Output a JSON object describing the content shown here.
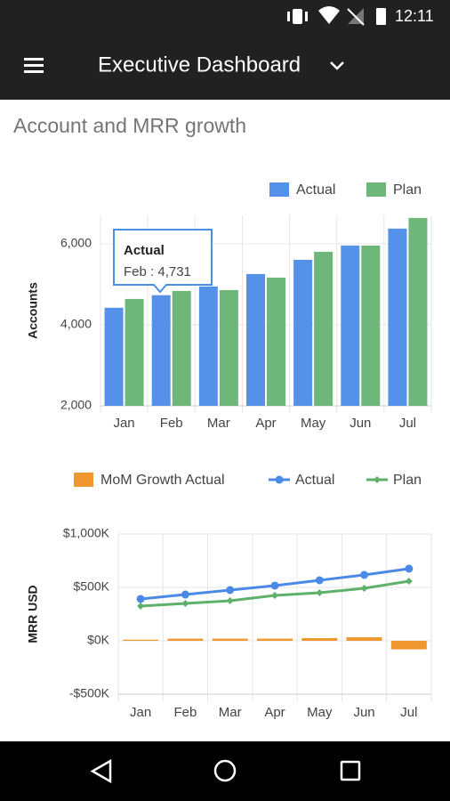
{
  "status_bar": {
    "time": "12:11"
  },
  "app_bar": {
    "title": "Executive Dashboard"
  },
  "section_title": "Account and MRR growth",
  "chart_data": [
    {
      "type": "bar",
      "y_label": "Accounts",
      "categories": [
        "Jan",
        "Feb",
        "Mar",
        "Apr",
        "May",
        "Jun",
        "Jul"
      ],
      "series": [
        {
          "name": "Actual",
          "color": "#5591e8",
          "values": [
            4420,
            4731,
            4945,
            5253,
            5604,
            5956,
            6374
          ]
        },
        {
          "name": "Plan",
          "color": "#6fb67a",
          "values": [
            4637,
            4835,
            4857,
            5165,
            5802,
            5956,
            6637
          ]
        }
      ],
      "ylim": [
        2000,
        6700
      ],
      "yticks": [
        {
          "value": 2000,
          "label": "2,000"
        },
        {
          "value": 4000,
          "label": "4,000"
        },
        {
          "value": 6000,
          "label": "6,000"
        }
      ],
      "grid": true,
      "legend": "top-right",
      "tooltip": {
        "title": "Actual",
        "text": "Feb : 4,731"
      }
    },
    {
      "type": "combo",
      "y_label": "MRR USD",
      "categories": [
        "Jan",
        "Feb",
        "Mar",
        "Apr",
        "May",
        "Jun",
        "Jul"
      ],
      "series": [
        {
          "name": "MoM Growth Actual",
          "kind": "bar",
          "color": "#f0962e",
          "values": [
            10000,
            20000,
            20000,
            20000,
            25000,
            33000,
            -80000
          ]
        },
        {
          "name": "Actual",
          "kind": "line",
          "marker": "circle",
          "color": "#4a8ae6",
          "values": [
            392000,
            433000,
            475000,
            517000,
            567000,
            617000,
            675000
          ]
        },
        {
          "name": "Plan",
          "kind": "line",
          "marker": "diamond",
          "color": "#5fb06a",
          "values": [
            325000,
            350000,
            375000,
            425000,
            450000,
            492000,
            558000
          ]
        }
      ],
      "ylim": [
        -500000,
        1000000
      ],
      "yticks": [
        {
          "value": -500000,
          "label": "-$500K"
        },
        {
          "value": 0,
          "label": "$0K"
        },
        {
          "value": 500000,
          "label": "$500K"
        },
        {
          "value": 1000000,
          "label": "$1,000K"
        }
      ],
      "grid": true,
      "legend": "top"
    }
  ]
}
